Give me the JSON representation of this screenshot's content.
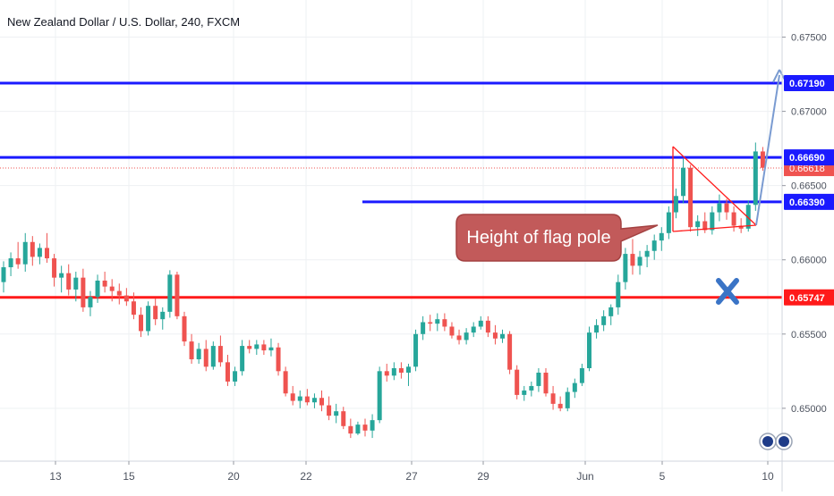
{
  "chart_data": {
    "type": "candlestick",
    "title": "New Zealand Dollar / U.S. Dollar, 240, FXCM",
    "y_range": [
      0.6465,
      0.6775
    ],
    "y_ticks": [
      "0.67500",
      "0.67000",
      "0.66500",
      "0.66000",
      "0.65500",
      "0.65000"
    ],
    "x_tick_labels": [
      "13",
      "15",
      "20",
      "22",
      "27",
      "29",
      "Jun",
      "5",
      "10"
    ],
    "horizontal_levels": [
      {
        "label": "0.67190",
        "value": 0.6719,
        "color": "#1a1aff"
      },
      {
        "label": "0.66690",
        "value": 0.6669,
        "color": "#1a1aff"
      },
      {
        "label": "0.66390",
        "value": 0.6639,
        "color": "#1a1aff"
      },
      {
        "label": "0.65747",
        "value": 0.65747,
        "color": "#ff1a1a"
      }
    ],
    "last_price": {
      "label": "0.66618",
      "value": 0.66618,
      "color": "#ef5350"
    },
    "annotation": "Height of flag pole",
    "colors": {
      "up": "#26a69a",
      "down": "#ef5350",
      "grid": "#eef0f3",
      "axis_text": "#4c525e"
    },
    "candles": [
      [
        0.6585,
        0.6599,
        0.6578,
        0.6595
      ],
      [
        0.6595,
        0.6605,
        0.6589,
        0.6601
      ],
      [
        0.6601,
        0.6612,
        0.6594,
        0.6597
      ],
      [
        0.6597,
        0.6618,
        0.6592,
        0.6612
      ],
      [
        0.6612,
        0.6616,
        0.6596,
        0.6602
      ],
      [
        0.6602,
        0.6611,
        0.6597,
        0.6608
      ],
      [
        0.6608,
        0.6618,
        0.6598,
        0.6601
      ],
      [
        0.6601,
        0.6604,
        0.6582,
        0.6588
      ],
      [
        0.6588,
        0.6596,
        0.6578,
        0.6591
      ],
      [
        0.6591,
        0.6597,
        0.6576,
        0.658
      ],
      [
        0.658,
        0.6592,
        0.6572,
        0.6588
      ],
      [
        0.6588,
        0.6594,
        0.6565,
        0.6568
      ],
      [
        0.6568,
        0.6579,
        0.6562,
        0.6575
      ],
      [
        0.6575,
        0.659,
        0.6571,
        0.6586
      ],
      [
        0.6586,
        0.6592,
        0.6578,
        0.6582
      ],
      [
        0.6582,
        0.6587,
        0.6572,
        0.6579
      ],
      [
        0.6579,
        0.6584,
        0.657,
        0.6576
      ],
      [
        0.6576,
        0.6581,
        0.6569,
        0.6572
      ],
      [
        0.6572,
        0.6578,
        0.656,
        0.6563
      ],
      [
        0.6563,
        0.6568,
        0.6548,
        0.6552
      ],
      [
        0.6552,
        0.6572,
        0.6549,
        0.6569
      ],
      [
        0.6569,
        0.6574,
        0.6556,
        0.656
      ],
      [
        0.656,
        0.6568,
        0.6553,
        0.6565
      ],
      [
        0.6565,
        0.6593,
        0.6561,
        0.659
      ],
      [
        0.659,
        0.6592,
        0.656,
        0.6562
      ],
      [
        0.6562,
        0.6565,
        0.6542,
        0.6545
      ],
      [
        0.6545,
        0.655,
        0.653,
        0.6533
      ],
      [
        0.6533,
        0.6544,
        0.653,
        0.654
      ],
      [
        0.654,
        0.6546,
        0.6525,
        0.6528
      ],
      [
        0.6528,
        0.6545,
        0.6526,
        0.6542
      ],
      [
        0.6542,
        0.6549,
        0.6528,
        0.6531
      ],
      [
        0.6531,
        0.6536,
        0.6515,
        0.6518
      ],
      [
        0.6518,
        0.6528,
        0.6515,
        0.6525
      ],
      [
        0.6525,
        0.6546,
        0.6522,
        0.6542
      ],
      [
        0.6542,
        0.6546,
        0.6537,
        0.654
      ],
      [
        0.654,
        0.6546,
        0.6536,
        0.6543
      ],
      [
        0.6543,
        0.6546,
        0.6536,
        0.6539
      ],
      [
        0.6539,
        0.6547,
        0.6535,
        0.6541
      ],
      [
        0.6541,
        0.6544,
        0.6522,
        0.6525
      ],
      [
        0.6525,
        0.6528,
        0.6508,
        0.651
      ],
      [
        0.651,
        0.6515,
        0.6502,
        0.6505
      ],
      [
        0.6505,
        0.6512,
        0.65,
        0.6508
      ],
      [
        0.6508,
        0.6513,
        0.6502,
        0.6504
      ],
      [
        0.6504,
        0.651,
        0.65,
        0.6507
      ],
      [
        0.6507,
        0.6512,
        0.6498,
        0.6502
      ],
      [
        0.6502,
        0.6508,
        0.6492,
        0.6495
      ],
      [
        0.6495,
        0.6503,
        0.649,
        0.6498
      ],
      [
        0.6498,
        0.6501,
        0.6486,
        0.6488
      ],
      [
        0.6488,
        0.6493,
        0.648,
        0.6483
      ],
      [
        0.6483,
        0.6491,
        0.6482,
        0.6489
      ],
      [
        0.6489,
        0.6493,
        0.6481,
        0.6485
      ],
      [
        0.6485,
        0.6496,
        0.648,
        0.6492
      ],
      [
        0.6492,
        0.6528,
        0.649,
        0.6525
      ],
      [
        0.6525,
        0.653,
        0.6518,
        0.6522
      ],
      [
        0.6522,
        0.6531,
        0.6519,
        0.6527
      ],
      [
        0.6527,
        0.6531,
        0.652,
        0.6524
      ],
      [
        0.6524,
        0.653,
        0.6515,
        0.6528
      ],
      [
        0.6528,
        0.6553,
        0.6525,
        0.655
      ],
      [
        0.655,
        0.6562,
        0.6546,
        0.6558
      ],
      [
        0.6558,
        0.6563,
        0.6552,
        0.6557
      ],
      [
        0.6557,
        0.6564,
        0.6552,
        0.656
      ],
      [
        0.656,
        0.6564,
        0.6552,
        0.6555
      ],
      [
        0.6555,
        0.6558,
        0.6547,
        0.6549
      ],
      [
        0.6549,
        0.6553,
        0.6543,
        0.6546
      ],
      [
        0.6546,
        0.6554,
        0.6543,
        0.6551
      ],
      [
        0.6551,
        0.6558,
        0.6548,
        0.6555
      ],
      [
        0.6555,
        0.6562,
        0.6553,
        0.6559
      ],
      [
        0.6559,
        0.6562,
        0.6548,
        0.6551
      ],
      [
        0.6551,
        0.6556,
        0.6543,
        0.6547
      ],
      [
        0.6547,
        0.6553,
        0.6544,
        0.655
      ],
      [
        0.655,
        0.6552,
        0.6523,
        0.6526
      ],
      [
        0.6526,
        0.6529,
        0.6506,
        0.6509
      ],
      [
        0.6509,
        0.6515,
        0.6505,
        0.6512
      ],
      [
        0.6512,
        0.6518,
        0.6508,
        0.6515
      ],
      [
        0.6515,
        0.6527,
        0.6511,
        0.6524
      ],
      [
        0.6524,
        0.6527,
        0.6508,
        0.651
      ],
      [
        0.651,
        0.6515,
        0.6499,
        0.6503
      ],
      [
        0.6503,
        0.6508,
        0.6498,
        0.65
      ],
      [
        0.65,
        0.6514,
        0.6498,
        0.6511
      ],
      [
        0.6511,
        0.652,
        0.6507,
        0.6517
      ],
      [
        0.6517,
        0.653,
        0.6515,
        0.6527
      ],
      [
        0.6527,
        0.6555,
        0.6525,
        0.6551
      ],
      [
        0.6551,
        0.656,
        0.6547,
        0.6556
      ],
      [
        0.6556,
        0.6566,
        0.6552,
        0.6562
      ],
      [
        0.6562,
        0.657,
        0.6556,
        0.6568
      ],
      [
        0.6568,
        0.659,
        0.6563,
        0.6585
      ],
      [
        0.6585,
        0.6608,
        0.658,
        0.6604
      ],
      [
        0.6604,
        0.6614,
        0.659,
        0.6596
      ],
      [
        0.6596,
        0.6606,
        0.659,
        0.6602
      ],
      [
        0.6602,
        0.661,
        0.6595,
        0.6606
      ],
      [
        0.6606,
        0.6617,
        0.66,
        0.6613
      ],
      [
        0.6613,
        0.6622,
        0.6606,
        0.6618
      ],
      [
        0.6618,
        0.6636,
        0.6614,
        0.6632
      ],
      [
        0.6632,
        0.6648,
        0.6628,
        0.6643
      ],
      [
        0.6643,
        0.6668,
        0.6638,
        0.6662
      ],
      [
        0.6662,
        0.6664,
        0.6619,
        0.6622
      ],
      [
        0.6622,
        0.663,
        0.6616,
        0.6626
      ],
      [
        0.6626,
        0.6632,
        0.6618,
        0.662
      ],
      [
        0.662,
        0.6636,
        0.6617,
        0.6632
      ],
      [
        0.6632,
        0.6644,
        0.6626,
        0.6638
      ],
      [
        0.6638,
        0.6641,
        0.6627,
        0.6632
      ],
      [
        0.6632,
        0.6636,
        0.6619,
        0.6623
      ],
      [
        0.6623,
        0.6628,
        0.6618,
        0.6621
      ],
      [
        0.6621,
        0.664,
        0.6619,
        0.6637
      ],
      [
        0.6637,
        0.6679,
        0.6633,
        0.6673
      ],
      [
        0.6673,
        0.6676,
        0.666,
        0.6662
      ]
    ]
  }
}
